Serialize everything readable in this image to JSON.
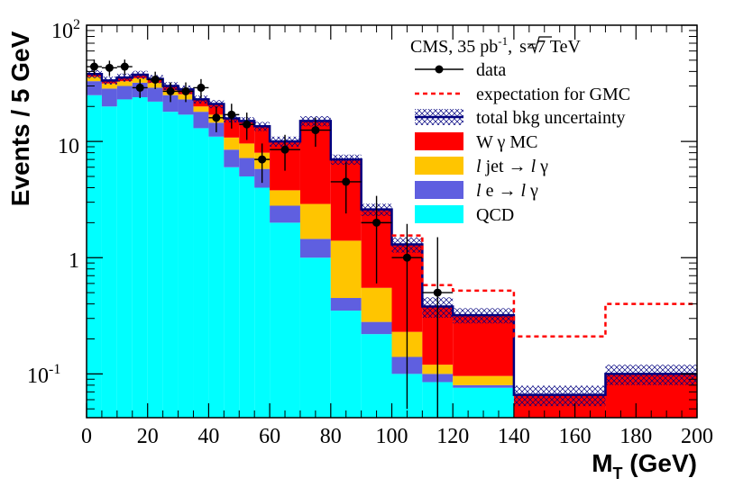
{
  "chart_data": {
    "type": "histogram-stacked",
    "xlabel": "M",
    "xlabel_sub": "T",
    "xlabel_unit": " (GeV)",
    "ylabel": "Events / 5 GeV",
    "xlim": [
      0,
      200
    ],
    "ylim": [
      0.042,
      100
    ],
    "yscale": "log",
    "x_ticks": [
      0,
      20,
      40,
      60,
      80,
      100,
      120,
      140,
      160,
      180,
      200
    ],
    "y_tick_labels": {
      "ten": "10",
      "one": "1",
      "hundred_base": "10",
      "hundred_exp": "2",
      "tenth_base": "10",
      "tenth_exp": "-1"
    },
    "legend": {
      "placement": "top-right",
      "header": "CMS, 35 pb",
      "header_exp": "-1",
      "header_sep": ",",
      "header_sqrt": "s",
      "header_tail": "=7 TeV",
      "entries": {
        "data": "data",
        "gmc": "expectation for GMC",
        "unc": "total bkg uncertainty",
        "wg_a": "W ",
        "wg_b": "γ",
        "wg_c": " MC",
        "ljet_a": "l",
        "ljet_b": " jet → ",
        "ljet_c": "l",
        "ljet_d": " γ",
        "le_a": "l",
        "le_b": " e → ",
        "le_c": "l",
        "le_d": " γ",
        "qcd": "QCD"
      }
    },
    "colors": {
      "qcd": "#00ffff",
      "le": "#5f5fe0",
      "ljet": "#ffc500",
      "wg": "#ff0000",
      "outline": "#000080",
      "gmc": "#ff0000",
      "data": "#000000"
    },
    "bins": [
      {
        "x0": 0,
        "x1": 5,
        "qcd": 25,
        "le": 8,
        "ljet": 3,
        "wg": 2
      },
      {
        "x0": 5,
        "x1": 10,
        "qcd": 20,
        "le": 8.5,
        "ljet": 3,
        "wg": 2
      },
      {
        "x0": 10,
        "x1": 15,
        "qcd": 23,
        "le": 7,
        "ljet": 3,
        "wg": 2.5
      },
      {
        "x0": 15,
        "x1": 20,
        "qcd": 24,
        "le": 8,
        "ljet": 3,
        "wg": 2.5
      },
      {
        "x0": 20,
        "x1": 25,
        "qcd": 22,
        "le": 7,
        "ljet": 3,
        "wg": 2.5
      },
      {
        "x0": 25,
        "x1": 30,
        "qcd": 18,
        "le": 7,
        "ljet": 2.5,
        "wg": 2.5
      },
      {
        "x0": 30,
        "x1": 35,
        "qcd": 17,
        "le": 6,
        "ljet": 2.5,
        "wg": 2.5
      },
      {
        "x0": 35,
        "x1": 40,
        "qcd": 13,
        "le": 5,
        "ljet": 2,
        "wg": 3
      },
      {
        "x0": 40,
        "x1": 45,
        "qcd": 11,
        "le": 3.5,
        "ljet": 2.5,
        "wg": 4
      },
      {
        "x0": 45,
        "x1": 50,
        "qcd": 6,
        "le": 2.5,
        "ljet": 2.3,
        "wg": 5
      },
      {
        "x0": 50,
        "x1": 55,
        "qcd": 5,
        "le": 2.2,
        "ljet": 2.4,
        "wg": 5.4
      },
      {
        "x0": 55,
        "x1": 60,
        "qcd": 4,
        "le": 1.8,
        "ljet": 2.2,
        "wg": 5.5
      },
      {
        "x0": 60,
        "x1": 70,
        "qcd": 2,
        "le": 0.8,
        "ljet": 1,
        "wg": 6.2
      },
      {
        "x0": 70,
        "x1": 80,
        "qcd": 1,
        "le": 0.45,
        "ljet": 1.45,
        "wg": 12.1
      },
      {
        "x0": 80,
        "x1": 90,
        "qcd": 0.35,
        "le": 0.1,
        "ljet": 0.95,
        "wg": 5.6
      },
      {
        "x0": 90,
        "x1": 100,
        "qcd": 0.22,
        "le": 0.06,
        "ljet": 0.27,
        "wg": 2.05
      },
      {
        "x0": 100,
        "x1": 110,
        "qcd": 0.1,
        "le": 0.04,
        "ljet": 0.09,
        "wg": 1.07
      },
      {
        "x0": 110,
        "x1": 120,
        "qcd": 0.085,
        "le": 0.015,
        "ljet": 0.02,
        "wg": 0.26
      },
      {
        "x0": 120,
        "x1": 140,
        "qcd": 0.076,
        "le": 0.004,
        "ljet": 0.016,
        "wg": 0.224
      },
      {
        "x0": 140,
        "x1": 170,
        "qcd": 0,
        "le": 0,
        "ljet": 0,
        "wg": 0.066
      },
      {
        "x0": 170,
        "x1": 200,
        "qcd": 0,
        "le": 0,
        "ljet": 0,
        "wg": 0.1
      }
    ],
    "uncertainty_frac": [
      0.08,
      0.08,
      0.08,
      0.08,
      0.08,
      0.08,
      0.08,
      0.08,
      0.08,
      0.08,
      0.08,
      0.09,
      0.1,
      0.1,
      0.1,
      0.12,
      0.15,
      0.2,
      0.15,
      0.2,
      0.2
    ],
    "gmc_steps": [
      {
        "x0": 100,
        "x1": 110,
        "y": 1.55
      },
      {
        "x0": 110,
        "x1": 120,
        "y": 0.58
      },
      {
        "x0": 120,
        "x1": 140,
        "y": 0.52
      },
      {
        "x0": 140,
        "x1": 170,
        "y": 0.21
      },
      {
        "x0": 170,
        "x1": 200,
        "y": 0.4
      }
    ],
    "data_points": [
      {
        "x": 2.5,
        "y": 44,
        "yerr": 6.6,
        "xerr": 2.5
      },
      {
        "x": 7.5,
        "y": 43,
        "yerr": 6.5,
        "xerr": 2.5
      },
      {
        "x": 12.5,
        "y": 44,
        "yerr": 6.6,
        "xerr": 2.5
      },
      {
        "x": 17.5,
        "y": 29,
        "yerr": 5.4,
        "xerr": 2.5
      },
      {
        "x": 22.5,
        "y": 34,
        "yerr": 5.8,
        "xerr": 2.5
      },
      {
        "x": 27.5,
        "y": 27,
        "yerr": 5.2,
        "xerr": 2.5
      },
      {
        "x": 32.5,
        "y": 27,
        "yerr": 5.2,
        "xerr": 2.5
      },
      {
        "x": 37.5,
        "y": 29,
        "yerr": 5.4,
        "xerr": 2.5
      },
      {
        "x": 42.5,
        "y": 16,
        "yerr": 4,
        "xerr": 2.5
      },
      {
        "x": 47.5,
        "y": 17,
        "yerr": 4.1,
        "xerr": 2.5
      },
      {
        "x": 52.5,
        "y": 14,
        "yerr": 3.7,
        "xerr": 2.5
      },
      {
        "x": 57.5,
        "y": 7,
        "yerr": 2.6,
        "xerr": 2.5
      },
      {
        "x": 65,
        "y": 8.5,
        "yerr": 2.9,
        "xerr": 5
      },
      {
        "x": 75,
        "y": 12.5,
        "yerr": 3.5,
        "xerr": 5
      },
      {
        "x": 85,
        "y": 4.5,
        "yerr": 2.1,
        "xerr": 5
      },
      {
        "x": 95,
        "y": 2,
        "yerr": 1.4,
        "xerr": 5
      },
      {
        "x": 105,
        "y": 1,
        "yerr": 0.95,
        "xerr": 5
      },
      {
        "x": 115,
        "y": 0.5,
        "yerr": 1.0,
        "xerr": 5
      }
    ]
  }
}
